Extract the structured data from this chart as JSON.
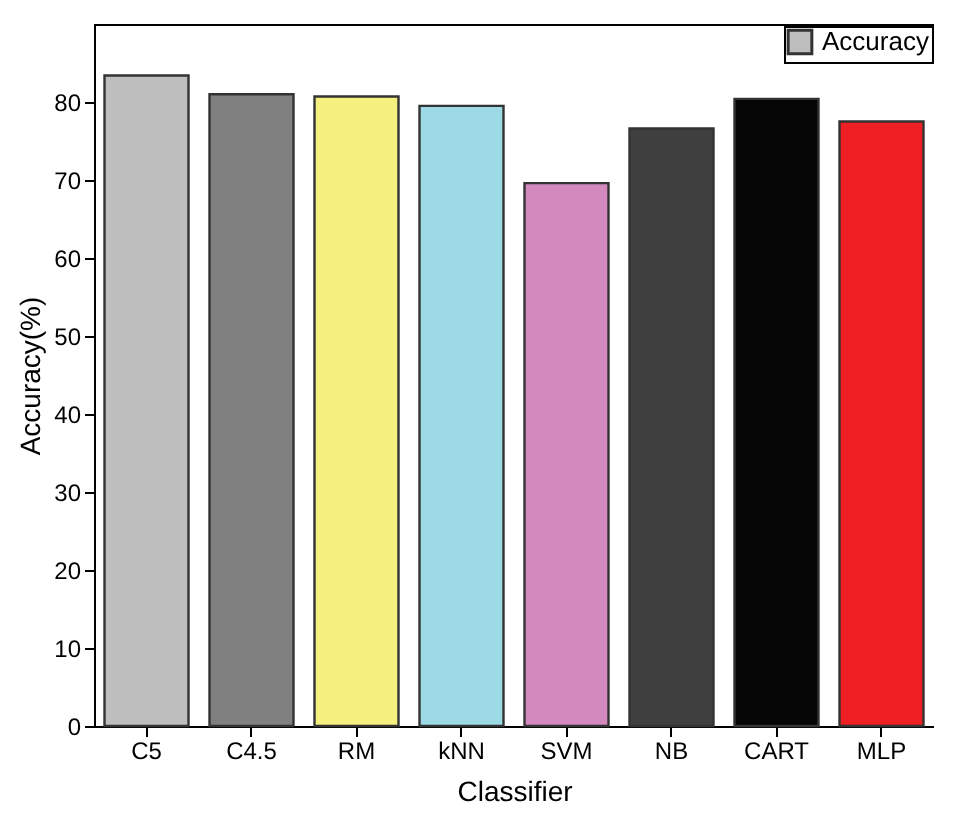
{
  "chart_data": {
    "type": "bar",
    "xlabel": "Classifier",
    "ylabel": "Accuracy(%)",
    "categories": [
      "C5",
      "C4.5",
      "RM",
      "kNN",
      "SVM",
      "NB",
      "CART",
      "MLP"
    ],
    "series": [
      {
        "name": "Accuracy",
        "color": "#bebebe",
        "colors": [
          "#bebebe",
          "#808080",
          "#f5f07f",
          "#9cdae6",
          "#d389bd",
          "#404040",
          "#050505",
          "#ee2024"
        ],
        "values": [
          83.4,
          81.0,
          80.7,
          79.5,
          69.6,
          76.6,
          80.4,
          77.5
        ]
      }
    ],
    "ylim": [
      0,
      90
    ],
    "yticks": [
      0,
      10,
      20,
      30,
      40,
      50,
      60,
      70,
      80
    ],
    "grid": false,
    "legend": "top right"
  }
}
